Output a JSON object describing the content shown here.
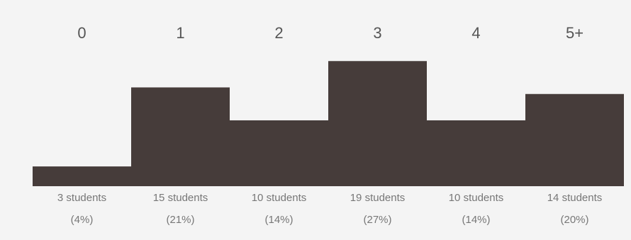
{
  "colors": {
    "panel_background": "#f4f4f4",
    "bar_fill": "#463c3a",
    "category_text": "#555555",
    "value_text": "#777777"
  },
  "chart_data": {
    "type": "bar",
    "categories": [
      "0",
      "1",
      "2",
      "3",
      "4",
      "5+"
    ],
    "values": [
      3,
      15,
      10,
      19,
      10,
      14
    ],
    "count_labels": [
      "3 students",
      "15 students",
      "10 students",
      "19 students",
      "10 students",
      "14 students"
    ],
    "percent_labels": [
      "(4%)",
      "(21%)",
      "(14%)",
      "(27%)",
      "(14%)",
      "(20%)"
    ],
    "ylim": [
      0,
      21.5
    ],
    "grid": false,
    "legend": "none"
  }
}
